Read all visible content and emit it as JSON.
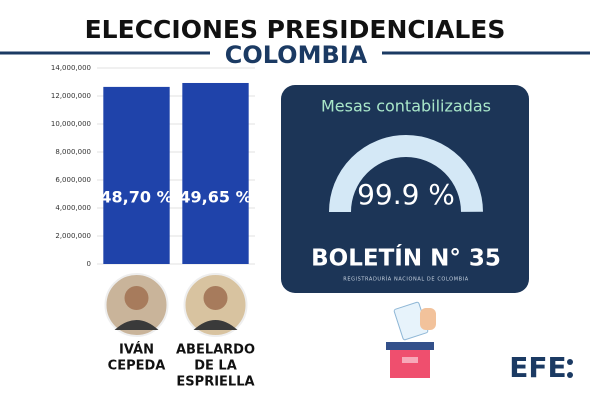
{
  "chart_data": {
    "type": "bar",
    "title": "ELECCIONES PRESIDENCIALES",
    "subtitle": "COLOMBIA",
    "categories": [
      [
        "IVÁN",
        "CEPEDA"
      ],
      [
        "ABELARDO",
        "DE LA",
        "ESPRIELLA"
      ]
    ],
    "values": [
      12650000,
      12930000
    ],
    "percent_labels": [
      "48,70 %",
      "49,65 %"
    ],
    "color": "#1f43aa",
    "ylim": [
      0,
      14000000
    ],
    "yticks": [
      0,
      {
        "value": 2000000,
        "label": "2,000,000"
      },
      {
        "value": 4000000,
        "label": "4,000,000"
      },
      {
        "value": 6000000,
        "label": "6,000,000"
      },
      {
        "value": 8000000,
        "label": "8,000,000"
      },
      {
        "value": 10000000,
        "label": "10,000,000"
      },
      {
        "value": 12000000,
        "label": "12,000,000"
      },
      {
        "value": 14000000,
        "label": "14,000,000"
      }
    ],
    "grid": true
  },
  "panel": {
    "heading": "Mesas contabilizadas",
    "gauge": {
      "value": 99.9,
      "label": "99.9 %"
    },
    "bulletin": "BOLETÍN N° 35",
    "source": "REGISTRADURÍA NACIONAL DE COLOMBIA"
  },
  "footer": {
    "logo": "EFE"
  }
}
